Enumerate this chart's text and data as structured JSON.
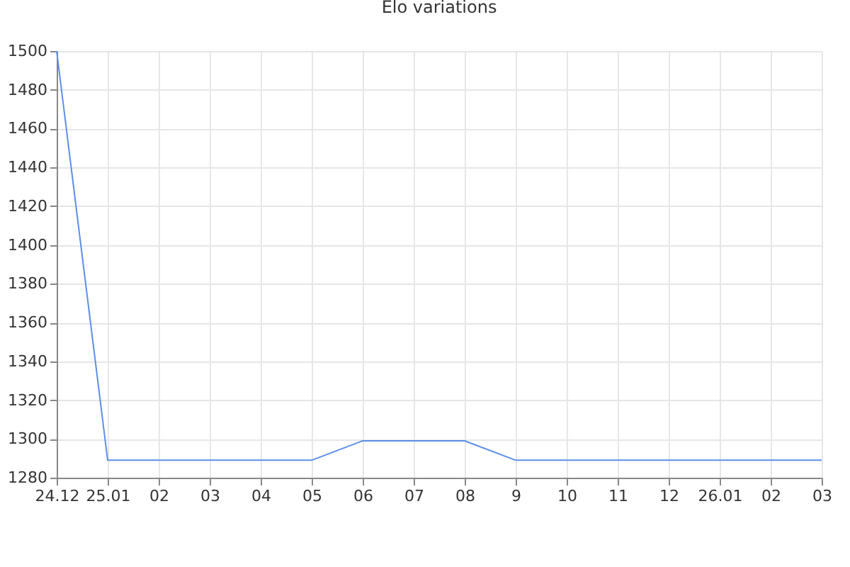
{
  "chart_data": {
    "type": "line",
    "title": "Elo variations",
    "categories": [
      "24.12",
      "25.01",
      "02",
      "03",
      "04",
      "05",
      "06",
      "07",
      "08",
      "9",
      "10",
      "11",
      "12",
      "26.01",
      "02",
      "03"
    ],
    "series": [
      {
        "color": "#5b8fe8",
        "values": [
          1500,
          1289,
          1289,
          1289,
          1289,
          1289,
          1299,
          1299,
          1299,
          1289,
          1289,
          1289,
          1289,
          1289,
          1289,
          1289
        ]
      }
    ],
    "ylim": [
      1280,
      1500
    ],
    "yticks": [
      1280,
      1300,
      1320,
      1340,
      1360,
      1380,
      1400,
      1420,
      1440,
      1460,
      1480,
      1500
    ],
    "grid": true,
    "marker": "none",
    "line_style": "solid"
  }
}
